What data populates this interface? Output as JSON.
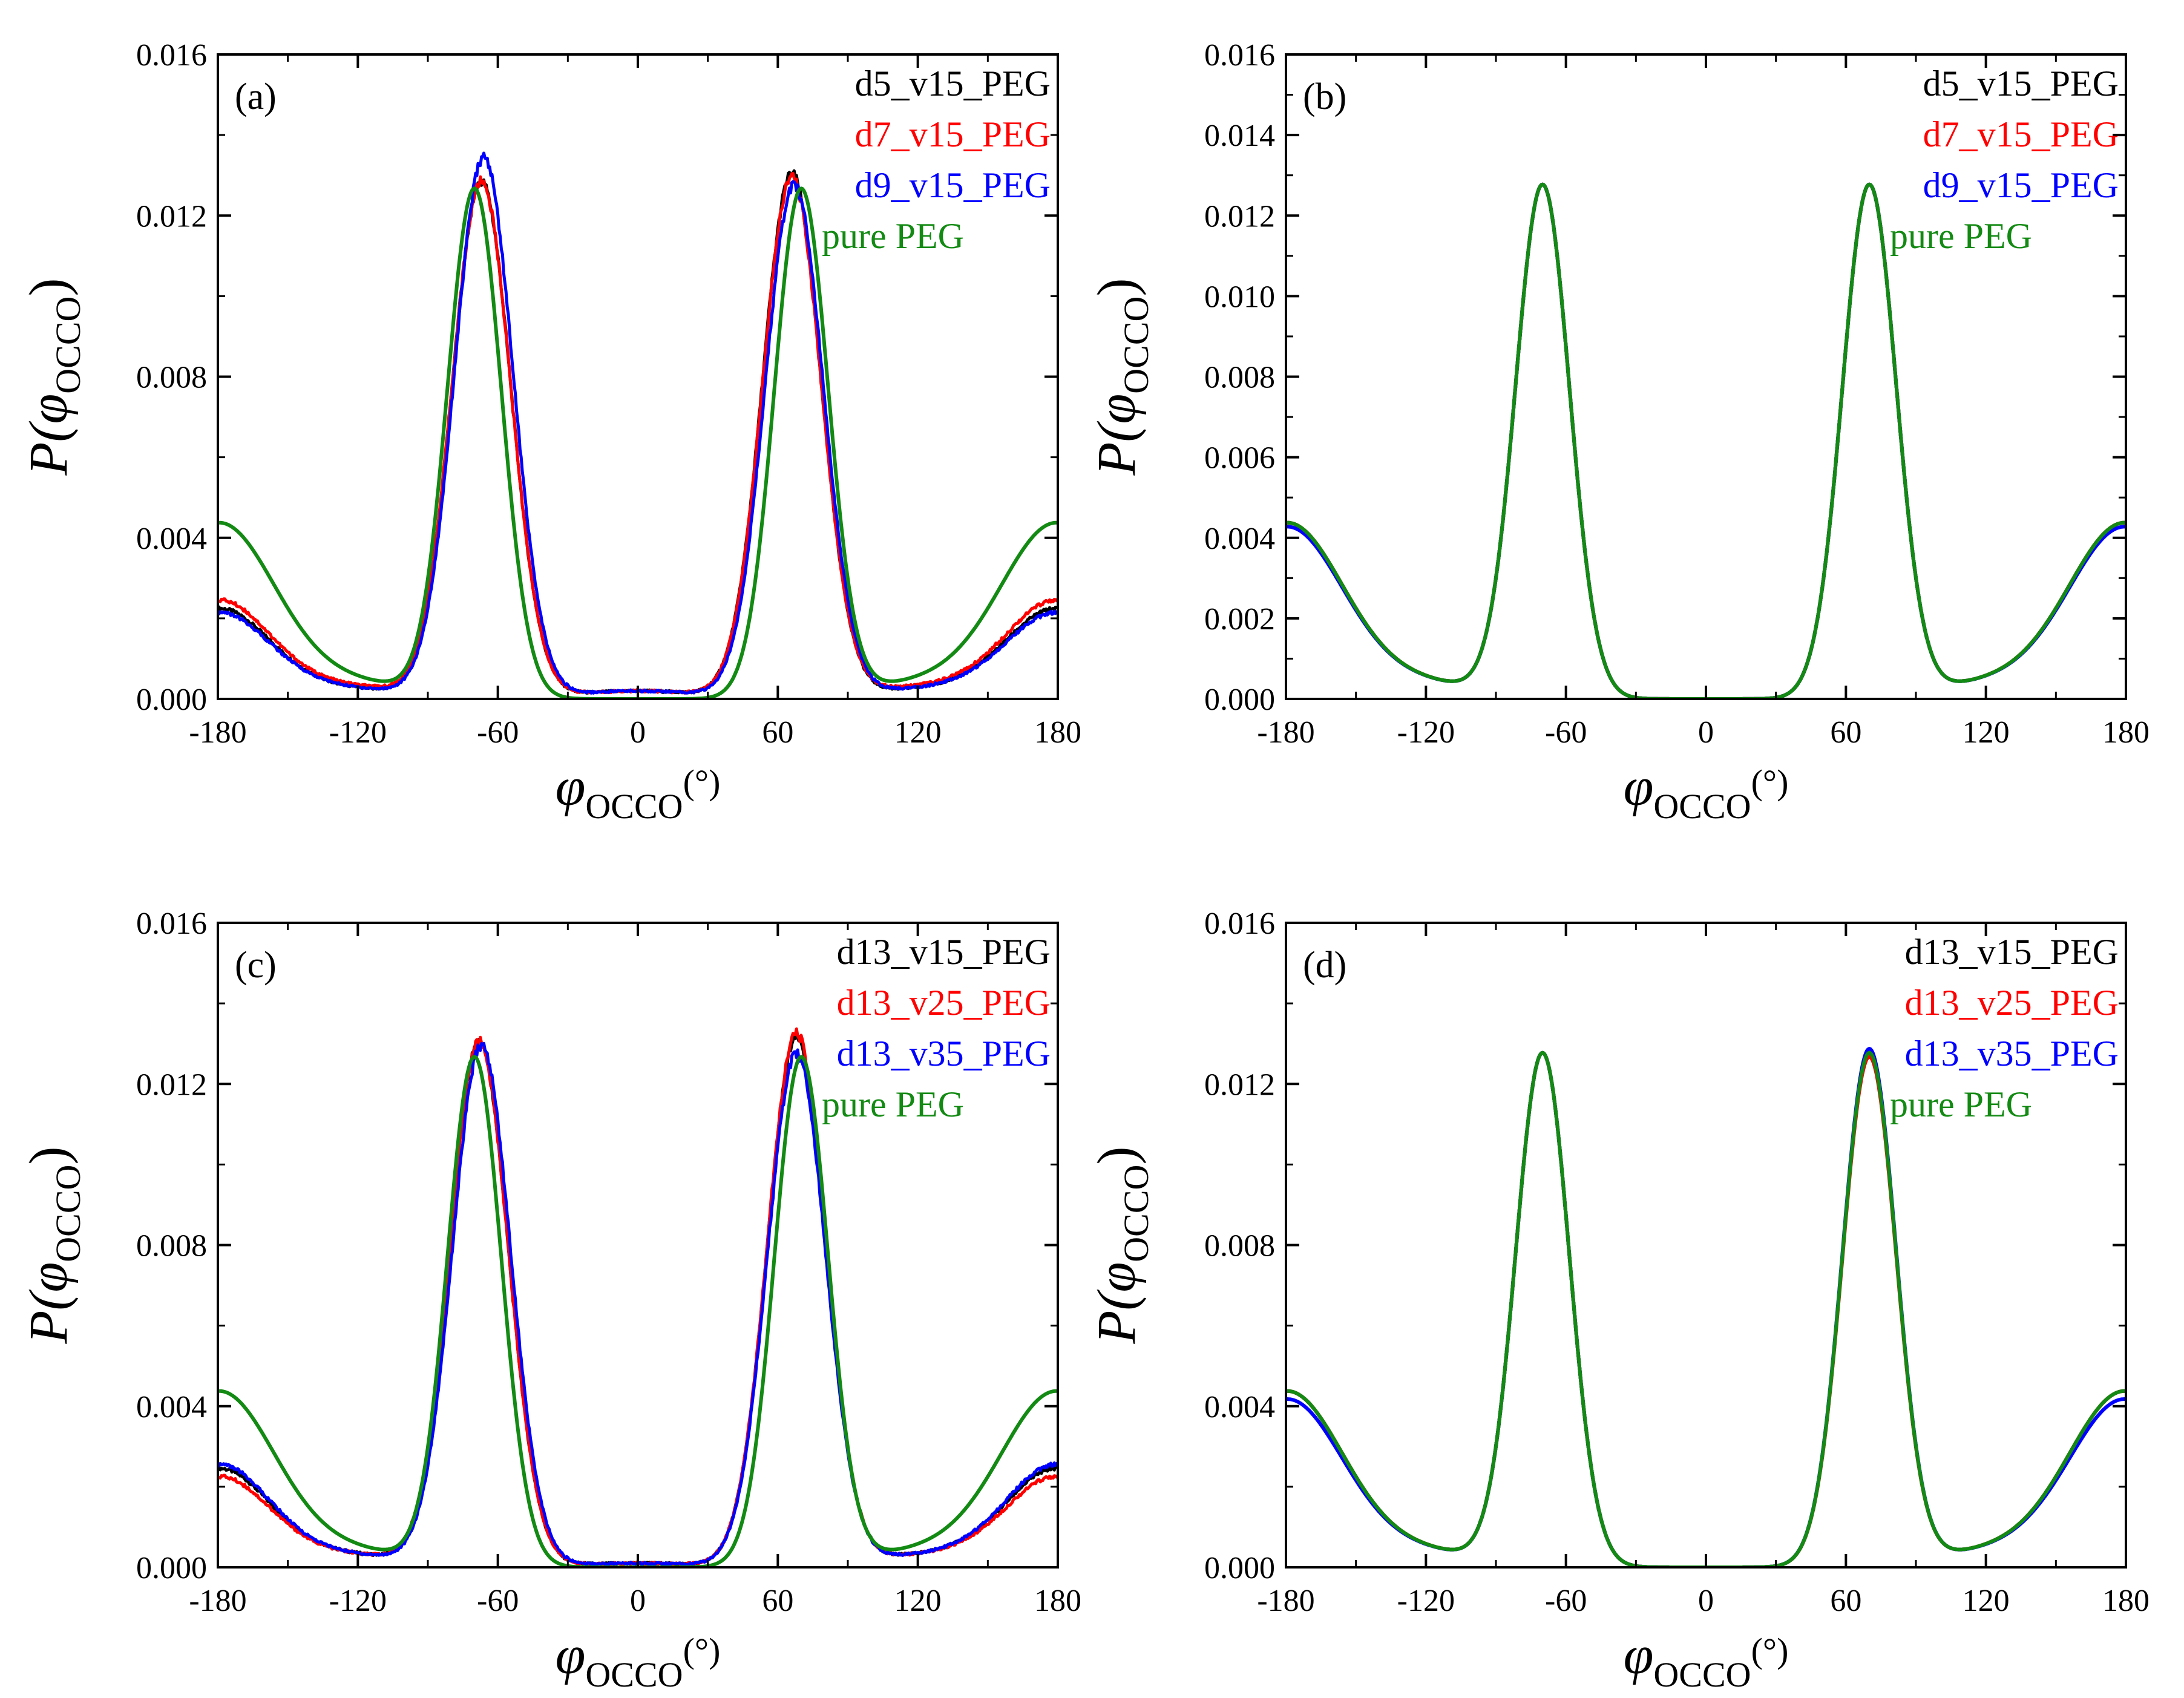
{
  "figure": {
    "colors": {
      "black": "#000000",
      "red": "#ff0000",
      "blue": "#0000ff",
      "green": "#138a13"
    },
    "axis_titles": {
      "y_main": "P(",
      "y_phi": "φ",
      "y_sub": "OCCO",
      "y_close": ")",
      "x_phi": "φ",
      "x_sub": "OCCO",
      "x_unit": "(°)"
    }
  },
  "chart_data": [
    {
      "type": "line",
      "panel_label": "(a)",
      "xlabel": "φOCCO(°)",
      "ylabel": "P(φOCCO)",
      "xlim": [
        -180,
        180
      ],
      "ylim": [
        0,
        0.016
      ],
      "x_ticks": [
        "-180",
        "-120",
        "-60",
        "0",
        "60",
        "120",
        "180"
      ],
      "y_ticks": [
        "0.000",
        "0.004",
        "0.008",
        "0.012",
        "0.016"
      ],
      "series": [
        {
          "name": "d5_v15_PEG",
          "color": "#000000",
          "profile": "confined",
          "peak_neg_x": -67,
          "peak_neg_y": 0.0128,
          "peak_pos_x": 66,
          "peak_pos_y": 0.013,
          "end_y": 0.0022,
          "min_y": 0.00025,
          "center_y": 0.0002
        },
        {
          "name": "d7_v15_PEG",
          "color": "#ff0000",
          "profile": "confined",
          "peak_neg_x": -67,
          "peak_neg_y": 0.0128,
          "peak_pos_x": 66,
          "peak_pos_y": 0.0129,
          "end_y": 0.0024,
          "min_y": 0.0003,
          "center_y": 0.0002
        },
        {
          "name": "d9_v15_PEG",
          "color": "#0000ff",
          "profile": "confined",
          "peak_neg_x": -66,
          "peak_neg_y": 0.0134,
          "peak_pos_x": 67,
          "peak_pos_y": 0.0127,
          "end_y": 0.0021,
          "min_y": 0.00025,
          "center_y": 0.0002
        },
        {
          "name": "pure PEG",
          "color": "#138a13",
          "profile": "bulk",
          "peak_neg_x": -70,
          "peak_neg_y": 0.0126,
          "peak_pos_x": 70,
          "peak_pos_y": 0.0126,
          "end_y": 0.0043,
          "min_y": 0.0004,
          "center_y": 0.0
        }
      ]
    },
    {
      "type": "line",
      "panel_label": "(b)",
      "xlabel": "φOCCO(°)",
      "ylabel": "P(φOCCO)",
      "xlim": [
        -180,
        180
      ],
      "ylim": [
        0,
        0.016
      ],
      "x_ticks": [
        "-180",
        "-120",
        "-60",
        "0",
        "60",
        "120",
        "180"
      ],
      "y_ticks": [
        "0.000",
        "0.002",
        "0.004",
        "0.006",
        "0.008",
        "0.010",
        "0.012",
        "0.014",
        "0.016"
      ],
      "series": [
        {
          "name": "d5_v15_PEG",
          "color": "#000000",
          "profile": "bulk",
          "peak_neg_x": -70,
          "peak_neg_y": 0.0127,
          "peak_pos_x": 70,
          "peak_pos_y": 0.0127,
          "end_y": 0.0043,
          "min_y": 0.0004,
          "center_y": 0.0
        },
        {
          "name": "d7_v15_PEG",
          "color": "#ff0000",
          "profile": "bulk",
          "peak_neg_x": -70,
          "peak_neg_y": 0.0127,
          "peak_pos_x": 70,
          "peak_pos_y": 0.0127,
          "end_y": 0.0043,
          "min_y": 0.0004,
          "center_y": 0.0
        },
        {
          "name": "d9_v15_PEG",
          "color": "#0000ff",
          "profile": "bulk",
          "peak_neg_x": -70,
          "peak_neg_y": 0.0127,
          "peak_pos_x": 70,
          "peak_pos_y": 0.0127,
          "end_y": 0.0042,
          "min_y": 0.0004,
          "center_y": 0.0
        },
        {
          "name": "pure PEG",
          "color": "#138a13",
          "profile": "bulk",
          "peak_neg_x": -70,
          "peak_neg_y": 0.0127,
          "peak_pos_x": 70,
          "peak_pos_y": 0.0127,
          "end_y": 0.0043,
          "min_y": 0.0004,
          "center_y": 0.0
        }
      ]
    },
    {
      "type": "line",
      "panel_label": "(c)",
      "xlabel": "φOCCO(°)",
      "ylabel": "P(φOCCO)",
      "xlim": [
        -180,
        180
      ],
      "ylim": [
        0,
        0.016
      ],
      "x_ticks": [
        "-180",
        "-120",
        "-60",
        "0",
        "60",
        "120",
        "180"
      ],
      "y_ticks": [
        "0.000",
        "0.004",
        "0.008",
        "0.012",
        "0.016"
      ],
      "series": [
        {
          "name": "d13_v15_PEG",
          "color": "#000000",
          "profile": "confined",
          "peak_neg_x": -68,
          "peak_neg_y": 0.013,
          "peak_pos_x": 68,
          "peak_pos_y": 0.0131,
          "end_y": 0.0024,
          "min_y": 0.0003,
          "center_y": 0.0001
        },
        {
          "name": "d13_v25_PEG",
          "color": "#ff0000",
          "profile": "confined",
          "peak_neg_x": -68,
          "peak_neg_y": 0.013,
          "peak_pos_x": 68,
          "peak_pos_y": 0.0132,
          "end_y": 0.0022,
          "min_y": 0.0003,
          "center_y": 0.0001
        },
        {
          "name": "d13_v35_PEG",
          "color": "#0000ff",
          "profile": "confined",
          "peak_neg_x": -67,
          "peak_neg_y": 0.0129,
          "peak_pos_x": 68,
          "peak_pos_y": 0.0127,
          "end_y": 0.0025,
          "min_y": 0.0003,
          "center_y": 0.0001
        },
        {
          "name": "pure PEG",
          "color": "#138a13",
          "profile": "bulk",
          "peak_neg_x": -70,
          "peak_neg_y": 0.0126,
          "peak_pos_x": 70,
          "peak_pos_y": 0.0126,
          "end_y": 0.0043,
          "min_y": 0.0004,
          "center_y": 0.0
        }
      ]
    },
    {
      "type": "line",
      "panel_label": "(d)",
      "xlabel": "φOCCO(°)",
      "ylabel": "P(φOCCO)",
      "xlim": [
        -180,
        180
      ],
      "ylim": [
        0,
        0.016
      ],
      "x_ticks": [
        "-180",
        "-120",
        "-60",
        "0",
        "60",
        "120",
        "180"
      ],
      "y_ticks": [
        "0.000",
        "0.004",
        "0.008",
        "0.012",
        "0.016"
      ],
      "series": [
        {
          "name": "d13_v15_PEG",
          "color": "#000000",
          "profile": "bulk",
          "peak_neg_x": -70,
          "peak_neg_y": 0.0127,
          "peak_pos_x": 70,
          "peak_pos_y": 0.0127,
          "end_y": 0.0043,
          "min_y": 0.0004,
          "center_y": 0.0
        },
        {
          "name": "d13_v25_PEG",
          "color": "#ff0000",
          "profile": "bulk",
          "peak_neg_x": -70,
          "peak_neg_y": 0.0127,
          "peak_pos_x": 70,
          "peak_pos_y": 0.0126,
          "end_y": 0.0043,
          "min_y": 0.0004,
          "center_y": 0.0
        },
        {
          "name": "d13_v35_PEG",
          "color": "#0000ff",
          "profile": "bulk",
          "peak_neg_x": -70,
          "peak_neg_y": 0.0127,
          "peak_pos_x": 70,
          "peak_pos_y": 0.0128,
          "end_y": 0.0041,
          "min_y": 0.0004,
          "center_y": 0.0
        },
        {
          "name": "pure PEG",
          "color": "#138a13",
          "profile": "bulk",
          "peak_neg_x": -70,
          "peak_neg_y": 0.0127,
          "peak_pos_x": 70,
          "peak_pos_y": 0.0127,
          "end_y": 0.0043,
          "min_y": 0.0004,
          "center_y": 0.0
        }
      ]
    }
  ]
}
